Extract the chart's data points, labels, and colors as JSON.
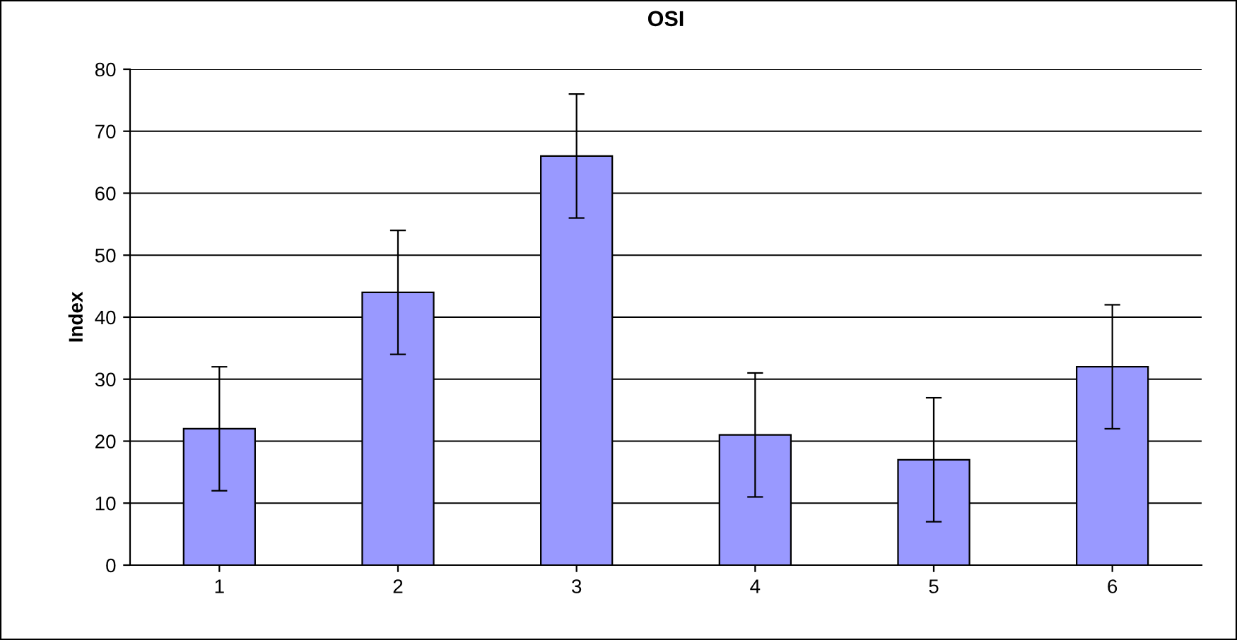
{
  "chart_data": {
    "type": "bar",
    "title": "OSI",
    "ylabel": "Index",
    "categories": [
      "1",
      "2",
      "3",
      "4",
      "5",
      "6"
    ],
    "values": [
      22,
      44,
      66,
      21,
      17,
      32
    ],
    "errors": [
      10,
      10,
      10,
      10,
      10,
      10
    ],
    "color": "#9999ff",
    "ylim": [
      0,
      80
    ],
    "yticks": [
      0,
      10,
      20,
      30,
      40,
      50,
      60,
      70,
      80
    ],
    "grid": "y"
  }
}
